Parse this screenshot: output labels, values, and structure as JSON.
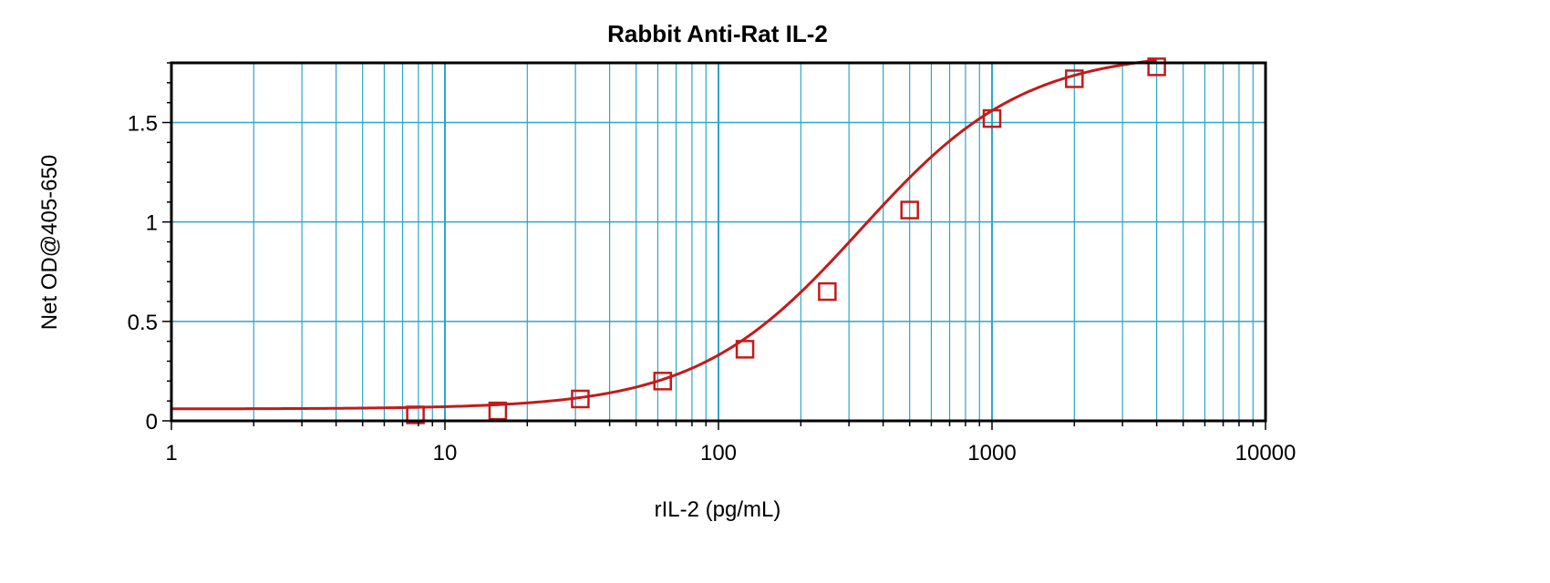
{
  "chart_data": {
    "type": "scatter",
    "title": "Rabbit Anti-Rat IL-2",
    "xlabel": "rIL-2 (pg/mL)",
    "ylabel": "Net OD@405-650",
    "x_scale": "log",
    "xlim": [
      1,
      10000
    ],
    "ylim": [
      0,
      1.8
    ],
    "x_ticks": [
      1,
      10,
      100,
      1000,
      10000
    ],
    "x_tick_labels": [
      "1",
      "10",
      "100",
      "1000",
      "10000"
    ],
    "y_ticks": [
      0,
      0.5,
      1,
      1.5
    ],
    "y_tick_labels": [
      "0",
      "0.5",
      "1",
      "1.5"
    ],
    "grid": true,
    "colors": {
      "grid": "#2aa7c9",
      "series": "#c21b1b",
      "frame": "#000000"
    },
    "series": [
      {
        "marker": "square",
        "x": [
          7.8,
          15.6,
          31.25,
          62.5,
          125,
          250,
          500,
          1000,
          2000,
          4000
        ],
        "y": [
          0.03,
          0.05,
          0.11,
          0.2,
          0.36,
          0.65,
          1.06,
          1.52,
          1.72,
          1.78
        ]
      }
    ],
    "fit_curve": {
      "type": "4PL",
      "bottom": 0.06,
      "top": 1.86,
      "ec50": 330,
      "hill": 1.45
    }
  }
}
